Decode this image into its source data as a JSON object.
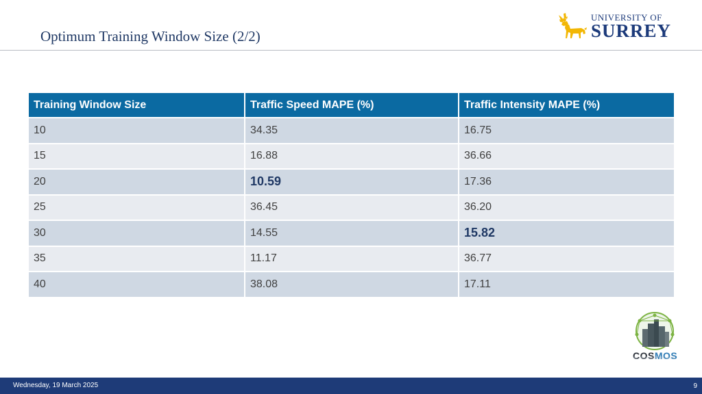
{
  "slide": {
    "title": "Optimum Training Window Size (2/2)"
  },
  "logos": {
    "university": {
      "line1": "UNIVERSITY OF",
      "line2": "SURREY",
      "icon": "stag-icon",
      "color": "#1c3a7a",
      "accent_color": "#f2b705"
    },
    "project": {
      "name_part1": "COS",
      "name_part2": "MOS",
      "icon": "globe-city-icon"
    }
  },
  "table": {
    "headers": [
      "Training Window Size",
      "Traffic Speed MAPE (%)",
      "Traffic Intensity MAPE (%)"
    ],
    "rows": [
      [
        "10",
        "34.35",
        "16.75"
      ],
      [
        "15",
        "16.88",
        "36.66"
      ],
      [
        "20",
        "10.59",
        "17.36"
      ],
      [
        "25",
        "36.45",
        "36.20"
      ],
      [
        "30",
        "14.55",
        "15.82"
      ],
      [
        "35",
        "11.17",
        "36.77"
      ],
      [
        "40",
        "38.08",
        "17.11"
      ]
    ],
    "highlighted": {
      "traffic_speed": "10.59",
      "traffic_intensity": "15.82"
    },
    "header_color": "#0b6aa2",
    "row_color_a": "#cfd8e3",
    "row_color_b": "#e8ebf0"
  },
  "footer": {
    "date": "Wednesday, 19 March 2025",
    "page_number": "9",
    "color": "#1e3b78"
  }
}
